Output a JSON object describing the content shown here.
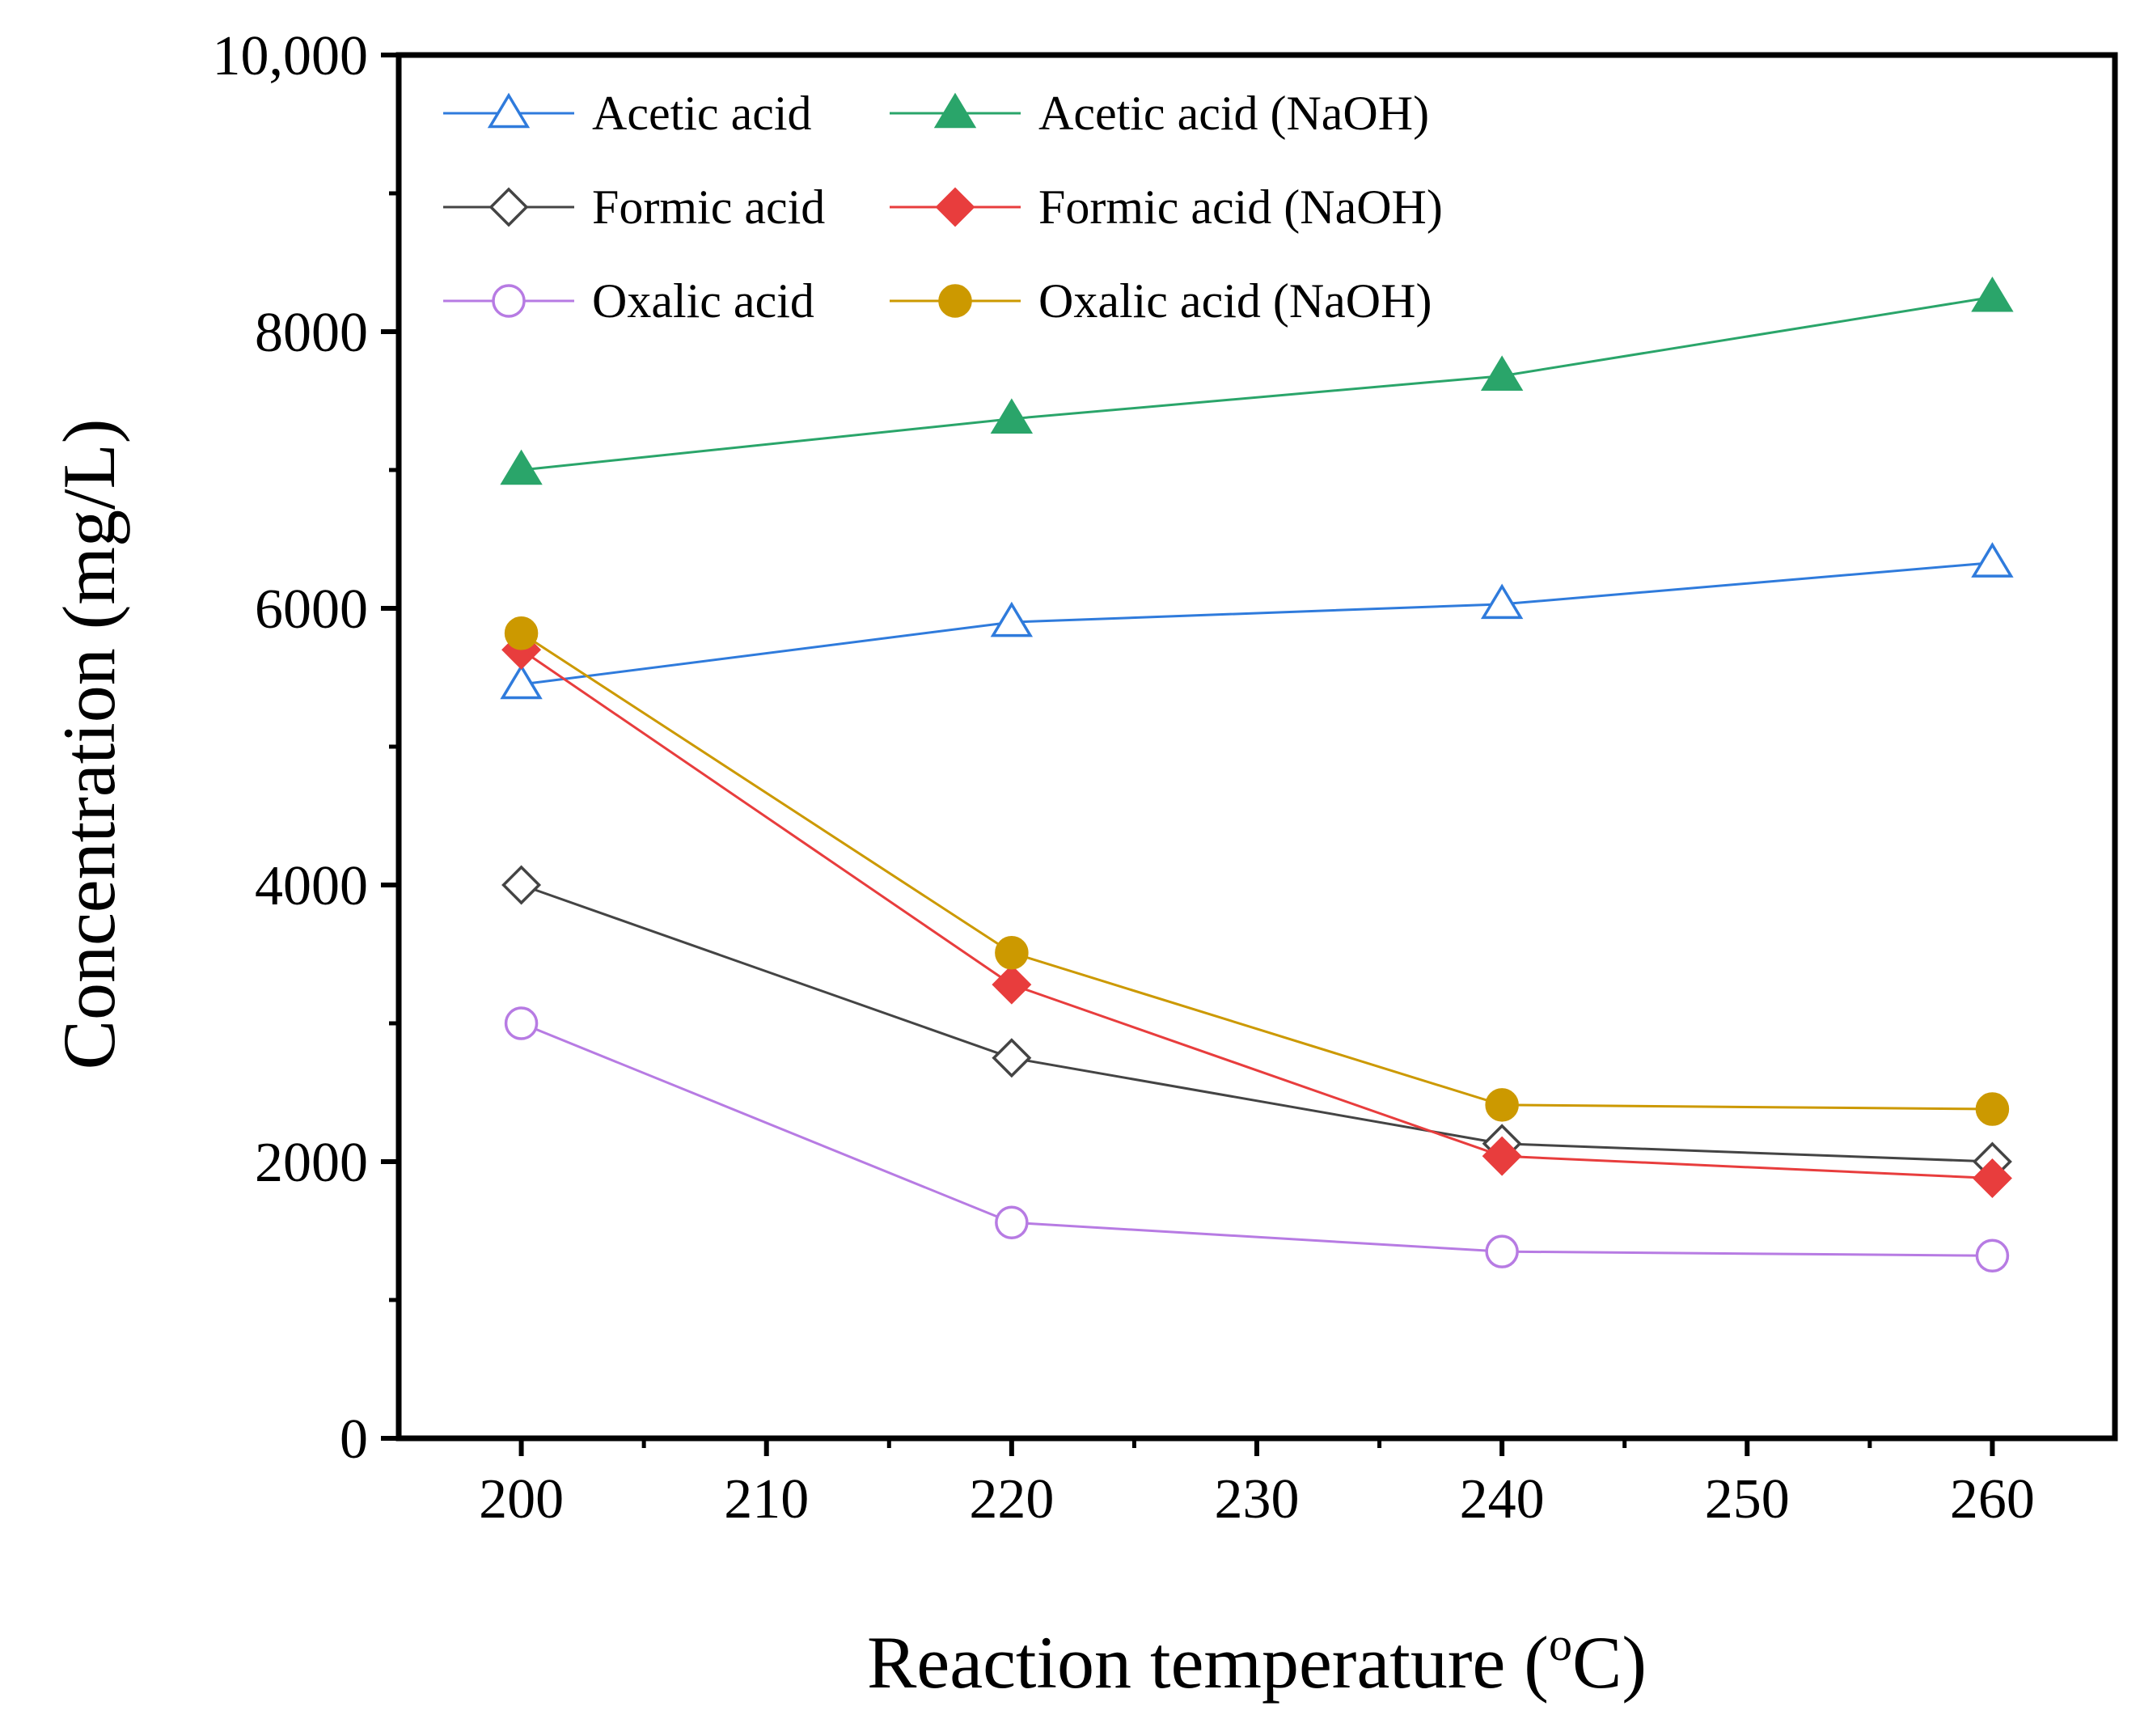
{
  "chart_data": {
    "type": "line",
    "title": "",
    "xlabel": "Reaction temperature (",
    "xlabel_sup": "o",
    "xlabel_end": "C)",
    "ylabel": "Concentration (mg/L)",
    "xlim": [
      195,
      265
    ],
    "ylim": [
      0,
      10000
    ],
    "x_ticks": [
      200,
      210,
      220,
      230,
      240,
      250,
      260
    ],
    "x_tick_labels": [
      "200",
      "210",
      "220",
      "230",
      "240",
      "250",
      "260"
    ],
    "y_ticks": [
      0,
      2000,
      4000,
      6000,
      8000,
      10000
    ],
    "y_tick_labels": [
      "0",
      "2000",
      "4000",
      "6000",
      "8000",
      "10,000"
    ],
    "grid": false,
    "legend_position": "top-left",
    "x": [
      200,
      220,
      240,
      260
    ],
    "series": [
      {
        "name": "Acetic acid",
        "values": [
          5450,
          5900,
          6030,
          6330
        ],
        "color": "#2f7bdc",
        "marker": "triangle",
        "filled": false
      },
      {
        "name": "Acetic acid (NaOH)",
        "values": [
          7000,
          7370,
          7680,
          8250
        ],
        "color": "#2aa56a",
        "marker": "triangle",
        "filled": true
      },
      {
        "name": "Formic acid",
        "values": [
          4000,
          2750,
          2130,
          2000
        ],
        "color": "#444444",
        "marker": "diamond",
        "filled": false
      },
      {
        "name": "Formic acid (NaOH)",
        "values": [
          5700,
          3280,
          2040,
          1880
        ],
        "color": "#e83d3d",
        "marker": "diamond",
        "filled": true
      },
      {
        "name": "Oxalic acid",
        "values": [
          3000,
          1560,
          1350,
          1320
        ],
        "color": "#b77be3",
        "marker": "circle",
        "filled": false
      },
      {
        "name": "Oxalic acid (NaOH)",
        "values": [
          5820,
          3510,
          2410,
          2380
        ],
        "color": "#cc9900",
        "marker": "circle",
        "filled": true
      }
    ]
  }
}
